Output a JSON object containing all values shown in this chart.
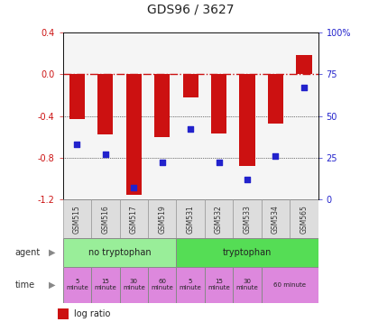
{
  "title": "GDS96 / 3627",
  "samples": [
    "GSM515",
    "GSM516",
    "GSM517",
    "GSM519",
    "GSM531",
    "GSM532",
    "GSM533",
    "GSM534",
    "GSM565"
  ],
  "log_ratio": [
    -0.43,
    -0.58,
    -1.15,
    -0.6,
    -0.22,
    -0.57,
    -0.88,
    -0.47,
    0.18
  ],
  "percentile_rank": [
    33,
    27,
    7,
    22,
    42,
    22,
    12,
    26,
    67
  ],
  "ylim_left": [
    -1.2,
    0.4
  ],
  "ylim_right": [
    0,
    100
  ],
  "yticks_left": [
    0.4,
    0.0,
    -0.4,
    -0.8,
    -1.2
  ],
  "yticks_right": [
    100,
    75,
    50,
    25,
    0
  ],
  "bar_color": "#cc1111",
  "dot_color": "#2222cc",
  "zero_line_color": "#cc1111",
  "grid_color": "#000000",
  "agent_groups": [
    {
      "label": "no tryptophan",
      "start": 0,
      "end": 4,
      "color": "#99ee99"
    },
    {
      "label": "tryptophan",
      "start": 4,
      "end": 9,
      "color": "#55dd55"
    }
  ],
  "time_spans": [
    {
      "label": "5\nminute",
      "start": 0,
      "end": 1
    },
    {
      "label": "15\nminute",
      "start": 1,
      "end": 2
    },
    {
      "label": "30\nminute",
      "start": 2,
      "end": 3
    },
    {
      "label": "60\nminute",
      "start": 3,
      "end": 4
    },
    {
      "label": "5\nminute",
      "start": 4,
      "end": 5
    },
    {
      "label": "15\nminute",
      "start": 5,
      "end": 6
    },
    {
      "label": "30\nminute",
      "start": 6,
      "end": 7
    },
    {
      "label": "60 minute",
      "start": 7,
      "end": 9
    }
  ],
  "time_color": "#dd88dd",
  "sample_bg_color": "#cccccc",
  "sample_cell_color": "#dddddd",
  "legend_bar_color": "#cc1111",
  "legend_dot_color": "#2222cc",
  "bg_color": "#ffffff",
  "tick_label_color_left": "#cc1111",
  "tick_label_color_right": "#2222cc",
  "right_tick_labels": [
    "100%",
    "75",
    "50",
    "25",
    "0"
  ]
}
